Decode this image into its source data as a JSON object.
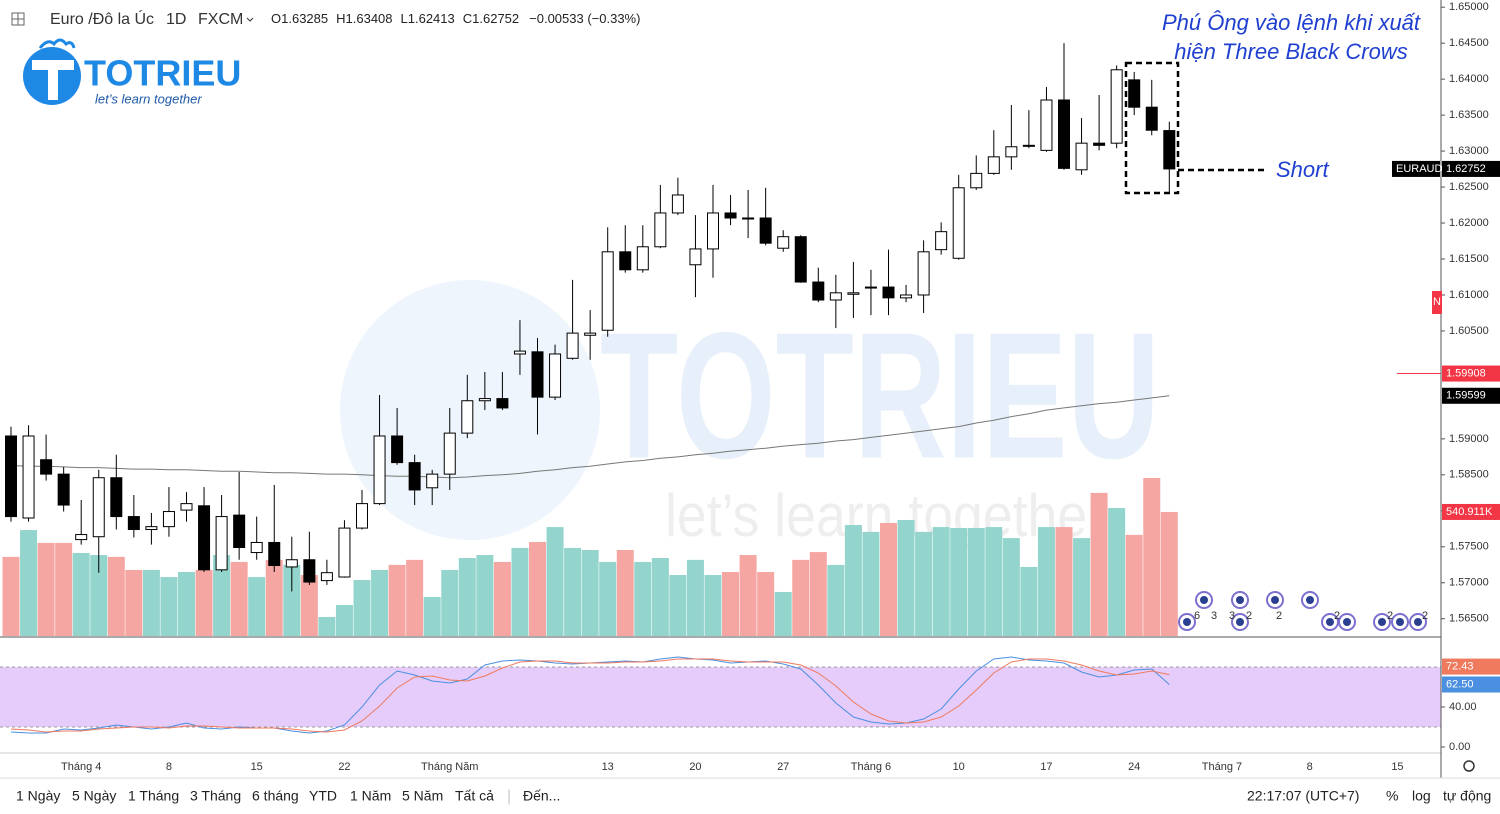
{
  "chart_data": {
    "type": "candlestick",
    "header": {
      "symbol": "Euro /Đô la Úc",
      "interval": "1D",
      "exchange": "FXCM",
      "ohlc_keys": [
        "O",
        "H",
        "L",
        "C"
      ],
      "ohlc_values": [
        "1.63285",
        "1.63408",
        "1.62413",
        "1.62752"
      ],
      "change": "−0.00533 (−0.33%)"
    },
    "logo": {
      "name": "TOTRIEU",
      "tagline": "let’s learn together"
    },
    "annotation": {
      "lines": [
        "Phú Ông vào lệnh khi xuất",
        "hiện Three Black Crows"
      ],
      "short": "Short"
    },
    "categories": [
      null,
      null,
      null,
      null,
      "Tháng 4",
      null,
      null,
      null,
      null,
      "8",
      null,
      null,
      null,
      null,
      "15",
      null,
      null,
      null,
      null,
      "22",
      null,
      null,
      null,
      null,
      null,
      "Tháng Năm",
      null,
      null,
      null,
      null,
      null,
      null,
      null,
      null,
      "13",
      null,
      null,
      null,
      null,
      "20",
      null,
      null,
      null,
      null,
      "27",
      null,
      null,
      null,
      null,
      "Tháng 6",
      null,
      null,
      null,
      null,
      "10",
      null,
      null,
      null,
      null,
      "17",
      null,
      null,
      null,
      null,
      "24",
      null,
      null,
      null,
      null,
      "Tháng 7",
      null,
      null,
      null,
      null,
      "8",
      null,
      null,
      null,
      null,
      "15",
      null,
      null
    ],
    "open": [
      1.5904,
      1.579,
      1.5871,
      1.5851,
      1.576,
      1.5764,
      1.5846,
      1.5792,
      1.5774,
      1.5778,
      1.5801,
      1.5807,
      1.5718,
      1.5794,
      1.5742,
      1.5756,
      1.5722,
      1.5732,
      1.5703,
      1.5708,
      1.5776,
      1.581,
      1.5904,
      1.5867,
      1.5832,
      1.5851,
      1.5908,
      1.5953,
      1.5956,
      1.6018,
      1.6021,
      1.5958,
      1.6012,
      1.6044,
      1.6051,
      1.616,
      1.6135,
      1.6167,
      1.6214,
      1.6142,
      1.6164,
      1.6214,
      1.6207,
      1.6207,
      1.6165,
      1.6181,
      1.6118,
      1.6093,
      1.6101,
      1.611,
      1.6111,
      1.6096,
      1.61,
      1.6163,
      1.6151,
      1.6249,
      1.6269,
      1.6292,
      1.6307,
      1.6301,
      1.6371,
      1.6274,
      1.6311,
      1.6311,
      1.6399,
      1.6361,
      1.63285,
      null,
      null,
      null,
      null,
      null,
      null,
      null,
      null,
      null,
      null,
      null,
      null,
      null,
      null,
      null
    ],
    "high": [
      1.5917,
      1.5919,
      1.5906,
      1.5861,
      1.5815,
      1.5857,
      1.5878,
      1.5822,
      1.5797,
      1.5833,
      1.5826,
      1.5833,
      1.5822,
      1.5854,
      1.5792,
      1.5836,
      1.5764,
      1.5771,
      1.5732,
      1.5787,
      1.5829,
      1.5961,
      1.5943,
      1.5878,
      1.5857,
      1.5943,
      1.5989,
      1.5993,
      1.5993,
      1.6065,
      1.604,
      1.6031,
      1.6121,
      1.6079,
      1.6194,
      1.6197,
      1.6197,
      1.6253,
      1.6263,
      1.6211,
      1.6253,
      1.6239,
      1.6246,
      1.6249,
      1.619,
      1.6183,
      1.6138,
      1.6128,
      1.6146,
      1.6135,
      1.6163,
      1.6114,
      1.6176,
      1.6201,
      1.6267,
      1.6294,
      1.6329,
      1.6364,
      1.6357,
      1.6389,
      1.645,
      1.6346,
      1.6378,
      1.6419,
      1.641,
      1.6399,
      1.63408,
      null,
      null,
      null,
      null,
      null,
      null,
      null,
      null,
      null,
      null,
      null,
      null,
      null,
      null,
      null
    ],
    "low": [
      1.5785,
      1.5785,
      1.5842,
      1.5799,
      1.5753,
      1.5714,
      1.5774,
      1.5763,
      1.5753,
      1.5764,
      1.5785,
      1.5715,
      1.5715,
      1.5732,
      1.5732,
      1.5715,
      1.5688,
      1.5697,
      1.5697,
      1.5707,
      1.5774,
      1.5808,
      1.5864,
      1.5808,
      1.5808,
      1.5829,
      1.5901,
      1.594,
      1.594,
      1.5989,
      1.5906,
      1.5954,
      1.601,
      1.601,
      1.6042,
      1.6131,
      1.6131,
      1.6165,
      1.6211,
      1.6097,
      1.6124,
      1.6197,
      1.6179,
      1.6169,
      1.616,
      1.6117,
      1.609,
      1.6054,
      1.6068,
      1.6072,
      1.6072,
      1.609,
      1.6075,
      1.6156,
      1.6149,
      1.6246,
      1.6267,
      1.6274,
      1.6304,
      1.6299,
      1.6274,
      1.6267,
      1.6301,
      1.6304,
      1.635,
      1.6322,
      1.62413,
      null,
      null,
      null,
      null,
      null,
      null,
      null,
      null,
      null,
      null,
      null,
      null,
      null,
      null,
      null
    ],
    "close": [
      1.5792,
      1.5904,
      1.5851,
      1.5808,
      1.5767,
      1.5846,
      1.5792,
      1.5774,
      1.5778,
      1.5799,
      1.581,
      1.5718,
      1.5792,
      1.5749,
      1.5756,
      1.5724,
      1.5732,
      1.5701,
      1.5714,
      1.5776,
      1.581,
      1.5904,
      1.5867,
      1.5829,
      1.5851,
      1.5908,
      1.5953,
      1.5956,
      1.5943,
      1.6022,
      1.5958,
      1.6018,
      1.6047,
      1.6047,
      1.616,
      1.6135,
      1.6167,
      1.6214,
      1.6239,
      1.6164,
      1.6214,
      1.6207,
      1.6206,
      1.6172,
      1.6181,
      1.6118,
      1.6093,
      1.6103,
      1.6103,
      1.6111,
      1.6096,
      1.61,
      1.616,
      1.6188,
      1.6249,
      1.6269,
      1.6292,
      1.6306,
      1.6308,
      1.6371,
      1.6276,
      1.6311,
      1.6308,
      1.6413,
      1.6361,
      1.6329,
      1.62752,
      null,
      null,
      null,
      null,
      null,
      null,
      null,
      null,
      null,
      null,
      null,
      null,
      null,
      null,
      null
    ],
    "volume": [
      345000,
      462000,
      406000,
      406000,
      362000,
      353000,
      345000,
      288000,
      288000,
      257000,
      279000,
      288000,
      353000,
      323000,
      257000,
      332000,
      310000,
      266000,
      83000,
      135000,
      244000,
      288000,
      310000,
      332000,
      170000,
      288000,
      340000,
      353000,
      323000,
      384000,
      410000,
      475000,
      384000,
      375000,
      323000,
      375000,
      323000,
      340000,
      266000,
      332000,
      266000,
      279000,
      353000,
      279000,
      192000,
      332000,
      366000,
      310000,
      484000,
      454000,
      493000,
      506000,
      454000,
      475000,
      471000,
      471000,
      475000,
      427000,
      301000,
      475000,
      475000,
      427000,
      624000,
      558000,
      441000,
      689000,
      540911,
      null,
      null,
      null,
      null,
      null,
      null,
      null,
      null,
      null,
      null,
      null,
      null,
      null,
      null,
      null
    ],
    "volume_last_label": "540.911K",
    "ma": [
      1.5863,
      1.5862,
      1.5862,
      1.5861,
      1.586,
      1.586,
      1.5859,
      1.5858,
      1.5858,
      1.5857,
      1.5857,
      1.5856,
      1.5855,
      1.5855,
      1.5854,
      1.5853,
      1.5853,
      1.5852,
      1.5851,
      1.5851,
      1.585,
      1.5849,
      1.5848,
      1.5848,
      1.5847,
      1.5846,
      1.5847,
      1.5849,
      1.585,
      1.5852,
      1.5855,
      1.5857,
      1.586,
      1.5862,
      1.5865,
      1.5868,
      1.587,
      1.5873,
      1.5875,
      1.5878,
      1.588,
      1.5883,
      1.5885,
      1.5887,
      1.589,
      1.5892,
      1.5894,
      1.5897,
      1.5899,
      1.5902,
      1.5905,
      1.5908,
      1.5911,
      1.5914,
      1.5917,
      1.5922,
      1.5926,
      1.5931,
      1.5935,
      1.594,
      1.5943,
      1.5946,
      1.5949,
      1.5951,
      1.5954,
      1.5957,
      1.59599,
      null,
      null,
      null,
      null,
      null,
      null,
      null,
      null,
      null,
      null,
      null,
      null,
      null,
      null,
      null
    ],
    "stoch_k": [
      15,
      14,
      14,
      18,
      17,
      19,
      22,
      20,
      18,
      20,
      24,
      19,
      18,
      20,
      19,
      19,
      16,
      14,
      16,
      22,
      40,
      62,
      76,
      72,
      66,
      64,
      68,
      82,
      86,
      87,
      86,
      84,
      83,
      84,
      85,
      86,
      85,
      88,
      90,
      88,
      87,
      84,
      85,
      86,
      83,
      78,
      62,
      44,
      30,
      25,
      23,
      24,
      28,
      38,
      58,
      76,
      88,
      90,
      87,
      86,
      84,
      75,
      70,
      72,
      77,
      78,
      62.5,
      null,
      null,
      null,
      null,
      null,
      null,
      null,
      null,
      null,
      null,
      null,
      null,
      null,
      null,
      null
    ],
    "stoch_k_label": "62.50",
    "stoch_d": [
      18,
      17,
      15,
      16,
      16,
      18,
      19,
      20,
      20,
      19,
      21,
      21,
      20,
      19,
      19,
      19,
      18,
      16,
      15,
      17,
      26,
      41,
      59,
      70,
      71,
      67,
      66,
      71,
      79,
      85,
      86,
      86,
      84,
      84,
      84,
      85,
      85,
      86,
      88,
      88,
      88,
      86,
      85,
      85,
      85,
      82,
      74,
      61,
      45,
      33,
      26,
      24,
      25,
      30,
      41,
      57,
      74,
      85,
      88,
      88,
      86,
      82,
      76,
      72,
      73,
      76,
      72.43,
      null,
      null,
      null,
      null,
      null,
      null,
      null,
      null,
      null,
      null,
      null,
      null,
      null,
      null,
      null
    ],
    "symbol_tag": "EURAUD",
    "price_line": 1.59908,
    "badge": "N",
    "event_badges": [
      "6",
      "3",
      "3",
      "2",
      "2",
      "2",
      "2",
      "2"
    ],
    "up_color": "#ffffff",
    "down_color": "#000000",
    "candle_outline": "#000000",
    "volume_up_color": "#93d4cc",
    "volume_down_color": "#f5a6a2",
    "ma_color": "#777777",
    "k_color": "#4a8fe0",
    "d_color": "#ef7a5e",
    "price_line_color": "#f23645",
    "stoch_band_color": "#e6ccfa",
    "ylim": [
      1.5626,
      1.651
    ],
    "yticks": [
      {
        "value": 1.65,
        "label": "1.65000"
      },
      {
        "value": 1.645,
        "label": "1.64500"
      },
      {
        "value": 1.64,
        "label": "1.64000"
      },
      {
        "value": 1.635,
        "label": "1.63500"
      },
      {
        "value": 1.63,
        "label": "1.63000"
      },
      {
        "value": 1.625,
        "label": "1.62500"
      },
      {
        "value": 1.62,
        "label": "1.62000"
      },
      {
        "value": 1.615,
        "label": "1.61500"
      },
      {
        "value": 1.61,
        "label": "1.61000"
      },
      {
        "value": 1.605,
        "label": "1.60500"
      },
      {
        "value": 1.59,
        "label": "1.59000"
      },
      {
        "value": 1.585,
        "label": "1.58500"
      },
      {
        "value": 1.58,
        "label": "1.58000"
      },
      {
        "value": 1.575,
        "label": "1.57500"
      },
      {
        "value": 1.57,
        "label": "1.57000"
      },
      {
        "value": 1.565,
        "label": "1.56500"
      }
    ],
    "stoch_ylim": [
      -5,
      107
    ],
    "stoch_yticks": [
      {
        "value": 40,
        "label": "40.00"
      },
      {
        "value": 0,
        "label": "0.00"
      }
    ],
    "stoch_bands": [
      20,
      80
    ]
  },
  "toolbar": {
    "ranges": [
      "1 Ngày",
      "5 Ngày",
      "1 Tháng",
      "3 Tháng",
      "6 tháng",
      "YTD",
      "1 Năm",
      "5 Năm",
      "Tất cả"
    ],
    "goto": "Đến...",
    "time": "22:17:07 (UTC+7)",
    "options": [
      "%",
      "log",
      "tự động"
    ]
  }
}
